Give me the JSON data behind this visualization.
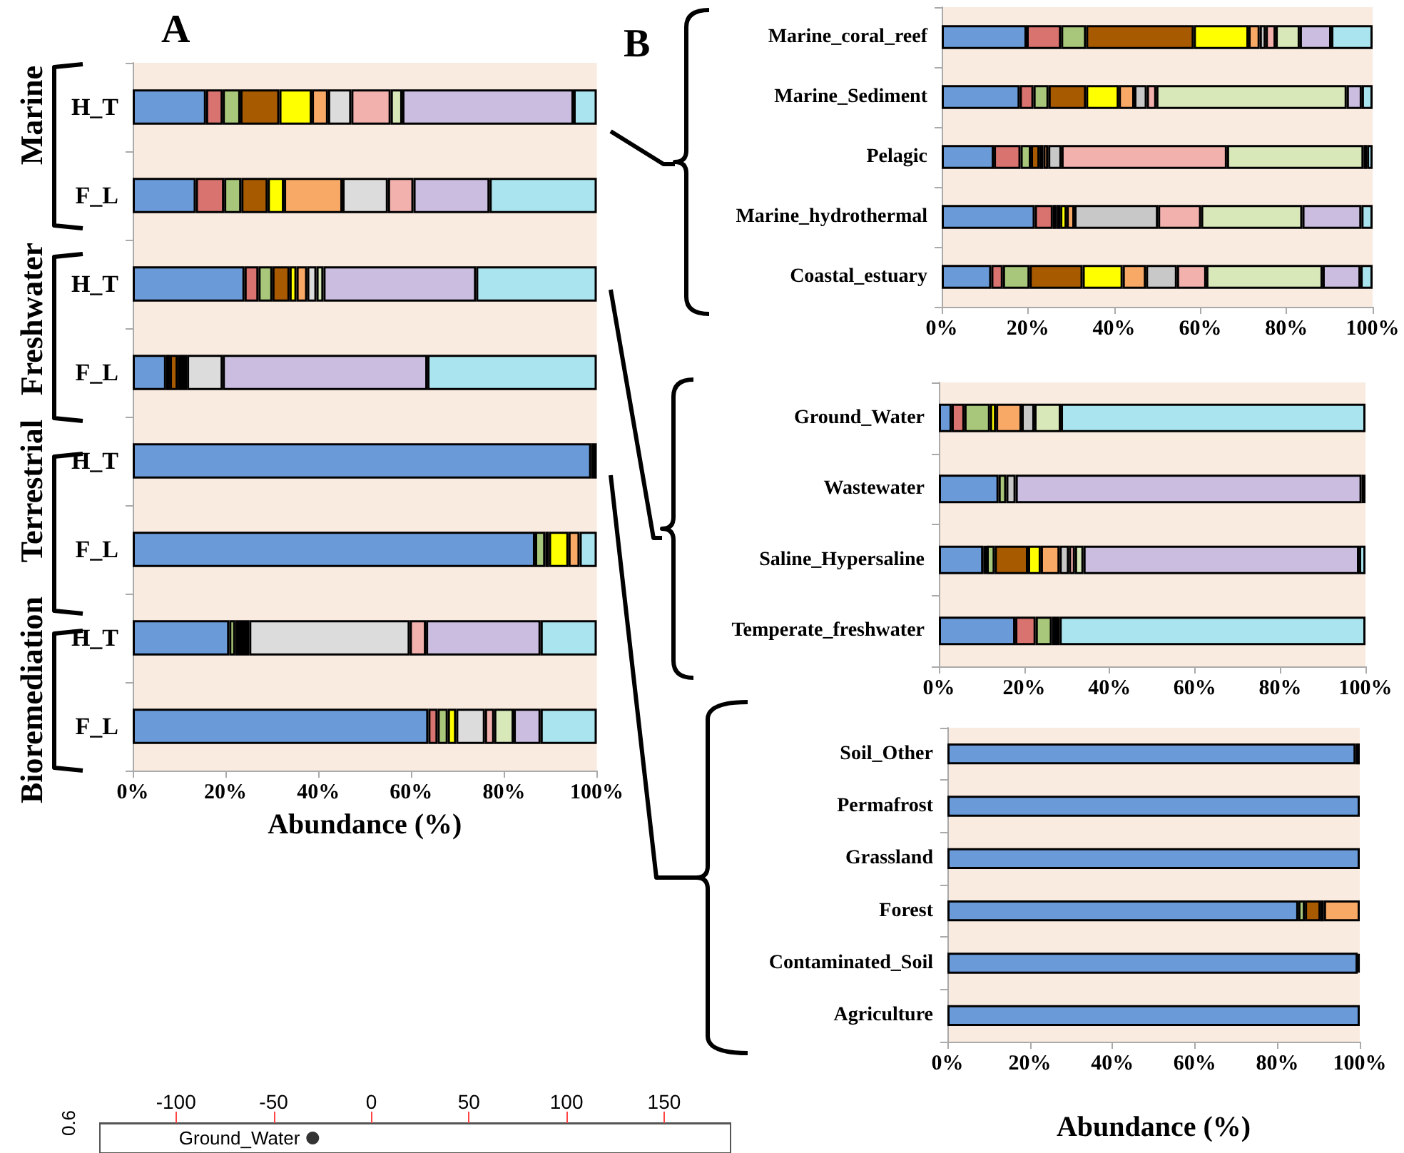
{
  "chart_data": [
    {
      "type": "bar",
      "title": "A",
      "orientation": "horizontal",
      "stacked": true,
      "grid": false,
      "xlabel": "Abundance (%)",
      "categories": [
        "H_T",
        "F_L",
        "H_T",
        "F_L",
        "H_T",
        "F_L",
        "H_T",
        "F_L"
      ],
      "annotations": [
        "Marine",
        "Freshwater",
        "Terrestrial",
        "Bioremediation"
      ],
      "xlim": [
        0,
        100
      ],
      "xticks": [
        {
          "value": 0,
          "label": "0%"
        },
        {
          "value": 20,
          "label": "20%"
        },
        {
          "value": 40,
          "label": "40%"
        },
        {
          "value": 60,
          "label": "60%"
        },
        {
          "value": 80,
          "label": "80%"
        },
        {
          "value": 100,
          "label": "100%"
        }
      ],
      "series": [
        {
          "color": "#6a9bd8",
          "values": [
            15.8,
            13.6,
            24.1,
            7.2,
            98.8,
            86.7,
            20.8,
            63.7
          ]
        },
        {
          "color": "#d9736f",
          "values": [
            3.6,
            6.1,
            3.0,
            0.8,
            null,
            null,
            null,
            2.0
          ]
        },
        {
          "color": "#a9c77a",
          "values": [
            3.8,
            3.7,
            3.0,
            null,
            null,
            2.2,
            1.3,
            2.2
          ]
        },
        {
          "color": "#a85a00",
          "values": [
            8.4,
            5.7,
            3.7,
            1.7,
            null,
            null,
            null,
            null
          ]
        },
        {
          "color": "#000000",
          "values": [
            null,
            null,
            null,
            2.0,
            1.2,
            0.8,
            3.0,
            null
          ]
        },
        {
          "color": "#ffff00",
          "values": [
            7.0,
            3.5,
            1.5,
            null,
            null,
            4.2,
            null,
            1.8
          ]
        },
        {
          "color": "#f9a966",
          "values": [
            3.5,
            12.6,
            2.3,
            null,
            null,
            2.4,
            null,
            null
          ]
        },
        {
          "color": "#dcdcdc",
          "values": [
            5.0,
            9.8,
            2.0,
            7.7,
            null,
            null,
            34.6,
            6.2
          ]
        },
        {
          "color": "#f2b1ad",
          "values": [
            8.5,
            5.5,
            null,
            null,
            null,
            null,
            3.5,
            2.0
          ]
        },
        {
          "color": "#d8e8b8",
          "values": [
            2.5,
            null,
            1.5,
            null,
            null,
            null,
            null,
            4.2
          ]
        },
        {
          "color": "#cbbde0",
          "values": [
            36.9,
            16.4,
            32.9,
            44.1,
            null,
            null,
            24.7,
            5.8
          ]
        },
        {
          "color": "#a9e4ef",
          "values": [
            5.0,
            23.1,
            26.0,
            36.5,
            null,
            3.7,
            12.1,
            12.1
          ]
        }
      ]
    },
    {
      "type": "bar",
      "title": "B",
      "orientation": "horizontal",
      "stacked": true,
      "grid": false,
      "categories": [
        "Marine_coral_reef",
        "Marine_Sediment",
        "Pelagic",
        "Marine_hydrothermal",
        "Coastal_estuary"
      ],
      "xlim": [
        0,
        100
      ],
      "xticks": [
        {
          "value": 0,
          "label": "0%"
        },
        {
          "value": 20,
          "label": "20%"
        },
        {
          "value": 40,
          "label": "40%"
        },
        {
          "value": 60,
          "label": "60%"
        },
        {
          "value": 80,
          "label": "80%"
        },
        {
          "value": 100,
          "label": "100%"
        }
      ],
      "series": [
        {
          "color": "#6a9bd8",
          "values": [
            19.7,
            18.1,
            12.1,
            21.6,
            11.5
          ]
        },
        {
          "color": "#d9736f",
          "values": [
            8.0,
            3.2,
            6.2,
            4.2,
            2.7
          ]
        },
        {
          "color": "#a9c77a",
          "values": [
            5.8,
            3.5,
            2.4,
            0.9,
            6.2
          ]
        },
        {
          "color": "#a85a00",
          "values": [
            25.0,
            8.7,
            2.0,
            0.8,
            12.3
          ]
        },
        {
          "color": "#ffff00",
          "values": [
            12.7,
            7.6,
            0.9,
            1.5,
            9.3
          ]
        },
        {
          "color": "#f9a966",
          "values": [
            2.6,
            3.6,
            1.1,
            1.8,
            5.4
          ]
        },
        {
          "color": "#c8c8c8",
          "values": [
            1.4,
            2.9,
            3.1,
            19.4,
            7.2
          ]
        },
        {
          "color": "#f2b1ad",
          "values": [
            2.3,
            2.2,
            38.4,
            10.0,
            6.8
          ]
        },
        {
          "color": "#d8e8b8",
          "values": [
            5.6,
            44.2,
            31.7,
            23.5,
            27.0
          ]
        },
        {
          "color": "#cbbde0",
          "values": [
            7.3,
            3.5,
            0.8,
            13.7,
            8.8
          ]
        },
        {
          "color": "#a9e4ef",
          "values": [
            9.6,
            2.5,
            1.3,
            2.6,
            2.8
          ]
        }
      ]
    },
    {
      "type": "bar",
      "orientation": "horizontal",
      "stacked": true,
      "grid": false,
      "categories": [
        "Ground_Water",
        "Wastewater",
        "Saline_Hypersaline",
        "Temperate_freshwater"
      ],
      "xlim": [
        0,
        100
      ],
      "xticks": [
        {
          "value": 0,
          "label": "0%"
        },
        {
          "value": 20,
          "label": "20%"
        },
        {
          "value": 40,
          "label": "40%"
        },
        {
          "value": 60,
          "label": "60%"
        },
        {
          "value": 80,
          "label": "80%"
        },
        {
          "value": 100,
          "label": "100%"
        }
      ],
      "series": [
        {
          "color": "#6a9bd8",
          "values": [
            3.0,
            14.0,
            10.4,
            17.9
          ]
        },
        {
          "color": "#d9736f",
          "values": [
            3.0,
            null,
            0.8,
            4.8
          ]
        },
        {
          "color": "#a9c77a",
          "values": [
            6.0,
            1.8,
            1.9,
            3.8
          ]
        },
        {
          "color": "#a85a00",
          "values": [
            null,
            null,
            7.8,
            null
          ]
        },
        {
          "color": "#000000",
          "values": [
            null,
            null,
            null,
            1.8
          ]
        },
        {
          "color": "#ffff00",
          "values": [
            1.4,
            null,
            3.0,
            null
          ]
        },
        {
          "color": "#f9a966",
          "values": [
            6.0,
            null,
            4.4,
            null
          ]
        },
        {
          "color": "#c8c8c8",
          "values": [
            3.0,
            2.2,
            2.2,
            null
          ]
        },
        {
          "color": "#f2b1ad",
          "values": [
            null,
            null,
            1.4,
            null
          ]
        },
        {
          "color": "#d8e8b8",
          "values": [
            6.2,
            null,
            2.0,
            null
          ]
        },
        {
          "color": "#cbbde0",
          "values": [
            null,
            81.1,
            64.6,
            null
          ]
        },
        {
          "color": "#a9e4ef",
          "values": [
            71.4,
            0.9,
            1.5,
            71.7
          ]
        }
      ]
    },
    {
      "type": "bar",
      "orientation": "horizontal",
      "stacked": true,
      "grid": false,
      "xlabel": "Abundance (%)",
      "categories": [
        "Soil_Other",
        "Permafrost",
        "Grassland",
        "Forest",
        "Contaminated_Soil",
        "Agriculture"
      ],
      "xlim": [
        0,
        100
      ],
      "xticks": [
        {
          "value": 0,
          "label": "0%"
        },
        {
          "value": 20,
          "label": "20%"
        },
        {
          "value": 40,
          "label": "40%"
        },
        {
          "value": 60,
          "label": "60%"
        },
        {
          "value": 80,
          "label": "80%"
        },
        {
          "value": 100,
          "label": "100%"
        }
      ],
      "series": [
        {
          "color": "#6a9bd8",
          "values": [
            99.0,
            100,
            100,
            85.1,
            99.5,
            100
          ]
        },
        {
          "color": "#a9c77a",
          "values": [
            null,
            null,
            null,
            1.6,
            null,
            null
          ]
        },
        {
          "color": "#a85a00",
          "values": [
            null,
            null,
            null,
            3.8,
            null,
            null
          ]
        },
        {
          "color": "#000000",
          "values": [
            null,
            null,
            null,
            null,
            0.5,
            null
          ]
        },
        {
          "color": "#ffff00",
          "values": [
            null,
            null,
            null,
            0.8,
            null,
            null
          ]
        },
        {
          "color": "#f9a966",
          "values": [
            null,
            null,
            null,
            8.7,
            null,
            null
          ]
        },
        {
          "color": "#c8c8c8",
          "values": [
            1.0,
            null,
            null,
            null,
            null,
            null
          ]
        }
      ]
    },
    {
      "type": "scatter",
      "orientation": "horizontal",
      "marker": "circle",
      "grid": false,
      "xlim": [
        -139,
        184
      ],
      "xticks": [
        -100,
        -50,
        0,
        50,
        100,
        150
      ],
      "categories": [
        "Ground_Water"
      ],
      "annotations": [
        "0.6"
      ],
      "series": [
        {
          "color": "#000000",
          "values": [
            -30
          ]
        }
      ]
    }
  ]
}
